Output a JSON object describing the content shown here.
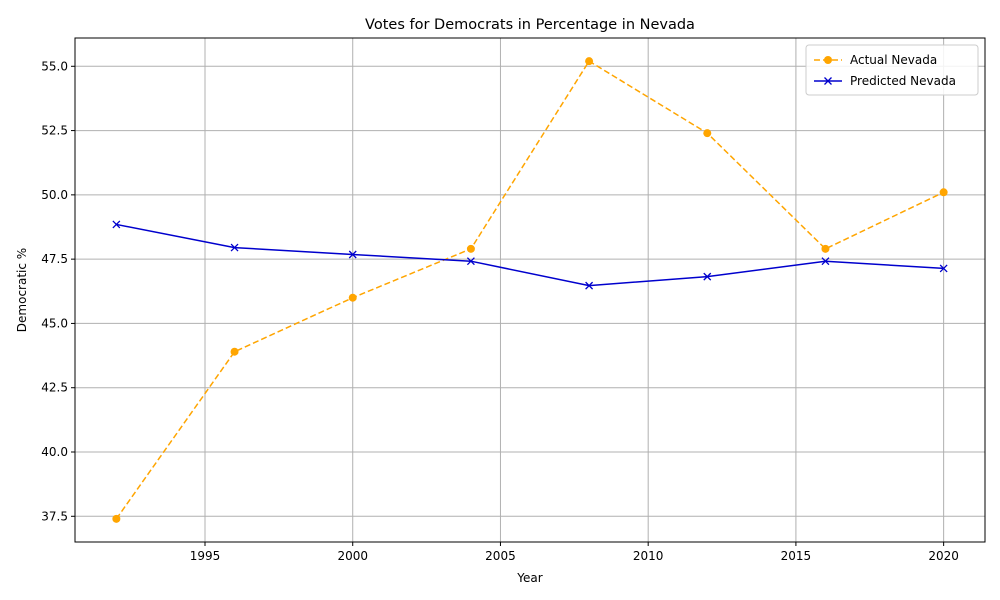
{
  "chart_data": {
    "type": "line",
    "title": "Votes for Democrats in Percentage in Nevada",
    "xlabel": "Year",
    "ylabel": "Democratic %",
    "x": [
      1992,
      1996,
      2000,
      2004,
      2008,
      2012,
      2016,
      2020
    ],
    "xlim": [
      1990.6,
      2021.4
    ],
    "ylim": [
      36.5,
      56.1
    ],
    "xticks": [
      1995,
      2000,
      2005,
      2010,
      2015,
      2020
    ],
    "yticks": [
      37.5,
      40.0,
      42.5,
      45.0,
      47.5,
      50.0,
      52.5,
      55.0
    ],
    "xtick_labels": [
      "1995",
      "2000",
      "2005",
      "2010",
      "2015",
      "2020"
    ],
    "ytick_labels": [
      "37.5",
      "40.0",
      "42.5",
      "45.0",
      "47.5",
      "50.0",
      "52.5",
      "55.0"
    ],
    "grid": true,
    "legend_position": "upper right",
    "series": [
      {
        "name": "Actual Nevada",
        "values": [
          37.4,
          43.9,
          46.0,
          47.9,
          55.2,
          52.4,
          47.9,
          50.1
        ],
        "color": "#ffa500",
        "line_style": "dashed",
        "marker": "circle"
      },
      {
        "name": "Predicted Nevada",
        "values": [
          48.85,
          47.95,
          47.68,
          47.42,
          46.47,
          46.82,
          47.42,
          47.14
        ],
        "color": "#0000cd",
        "line_style": "solid",
        "marker": "x"
      }
    ]
  }
}
